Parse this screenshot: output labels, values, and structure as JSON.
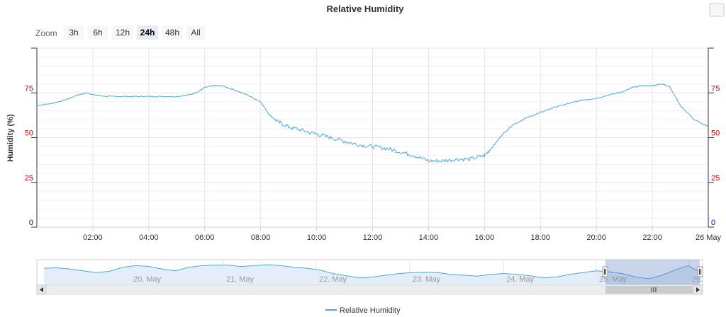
{
  "chart_data": {
    "type": "line",
    "title": "Relative Humidity",
    "ylabel": "Humidity (%)",
    "ylim": [
      0,
      100
    ],
    "y_ticks": [
      0,
      25,
      50,
      75
    ],
    "x_range_hours": [
      0,
      24
    ],
    "x_ticks": [
      "02:00",
      "04:00",
      "06:00",
      "08:00",
      "10:00",
      "12:00",
      "14:00",
      "16:00",
      "18:00",
      "20:00",
      "22:00",
      "26 May"
    ],
    "grid": true,
    "legend": "bottom-center",
    "series": [
      {
        "name": "Relative Humidity",
        "color": "#4aa8d8",
        "x_hours": [
          0,
          0.5,
          1.0,
          1.5,
          1.8,
          2.0,
          2.5,
          3.0,
          3.5,
          4.0,
          4.5,
          5.0,
          5.5,
          5.8,
          6.0,
          6.3,
          6.6,
          7.0,
          7.5,
          8.0,
          8.3,
          8.6,
          9.0,
          9.5,
          10.0,
          10.5,
          11.0,
          11.5,
          12.0,
          12.5,
          13.0,
          13.5,
          14.0,
          14.5,
          15.0,
          15.5,
          16.0,
          16.3,
          16.6,
          17.0,
          17.5,
          18.0,
          18.5,
          19.0,
          19.5,
          20.0,
          20.5,
          21.0,
          21.3,
          21.6,
          22.0,
          22.3,
          22.6,
          23.0,
          23.5,
          24.0
        ],
        "y_values": [
          68,
          69,
          71,
          74,
          75,
          74,
          73,
          73,
          73,
          73,
          73,
          73,
          74,
          76,
          78,
          79,
          79,
          77,
          74,
          70,
          63,
          59,
          56,
          54,
          52,
          50,
          48,
          46,
          45,
          44,
          42,
          40,
          37,
          37,
          38,
          38,
          40,
          45,
          51,
          57,
          61,
          64,
          67,
          69,
          71,
          72,
          74,
          76,
          78,
          79,
          79,
          80,
          79,
          68,
          60,
          56
        ]
      }
    ],
    "navigator": {
      "labels": [
        "20. May",
        "21. May",
        "22. May",
        "23. May",
        "24. May",
        "25. May",
        "26."
      ],
      "values": [
        72,
        73,
        70,
        66,
        62,
        65,
        74,
        78,
        76,
        70,
        66,
        74,
        78,
        79,
        79,
        76,
        78,
        80,
        78,
        74,
        72,
        68,
        60,
        55,
        50,
        52,
        56,
        60,
        62,
        63,
        62,
        58,
        56,
        54,
        58,
        60,
        58,
        55,
        50,
        52,
        58,
        62,
        66,
        64,
        60,
        52,
        48,
        56,
        68,
        78,
        62
      ]
    }
  },
  "toolbar": {
    "zoom_label": "Zoom",
    "buttons": [
      "3h",
      "6h",
      "12h",
      "24h",
      "48h",
      "All"
    ],
    "active": "24h"
  },
  "menu_icon": "hamburger-menu-icon"
}
